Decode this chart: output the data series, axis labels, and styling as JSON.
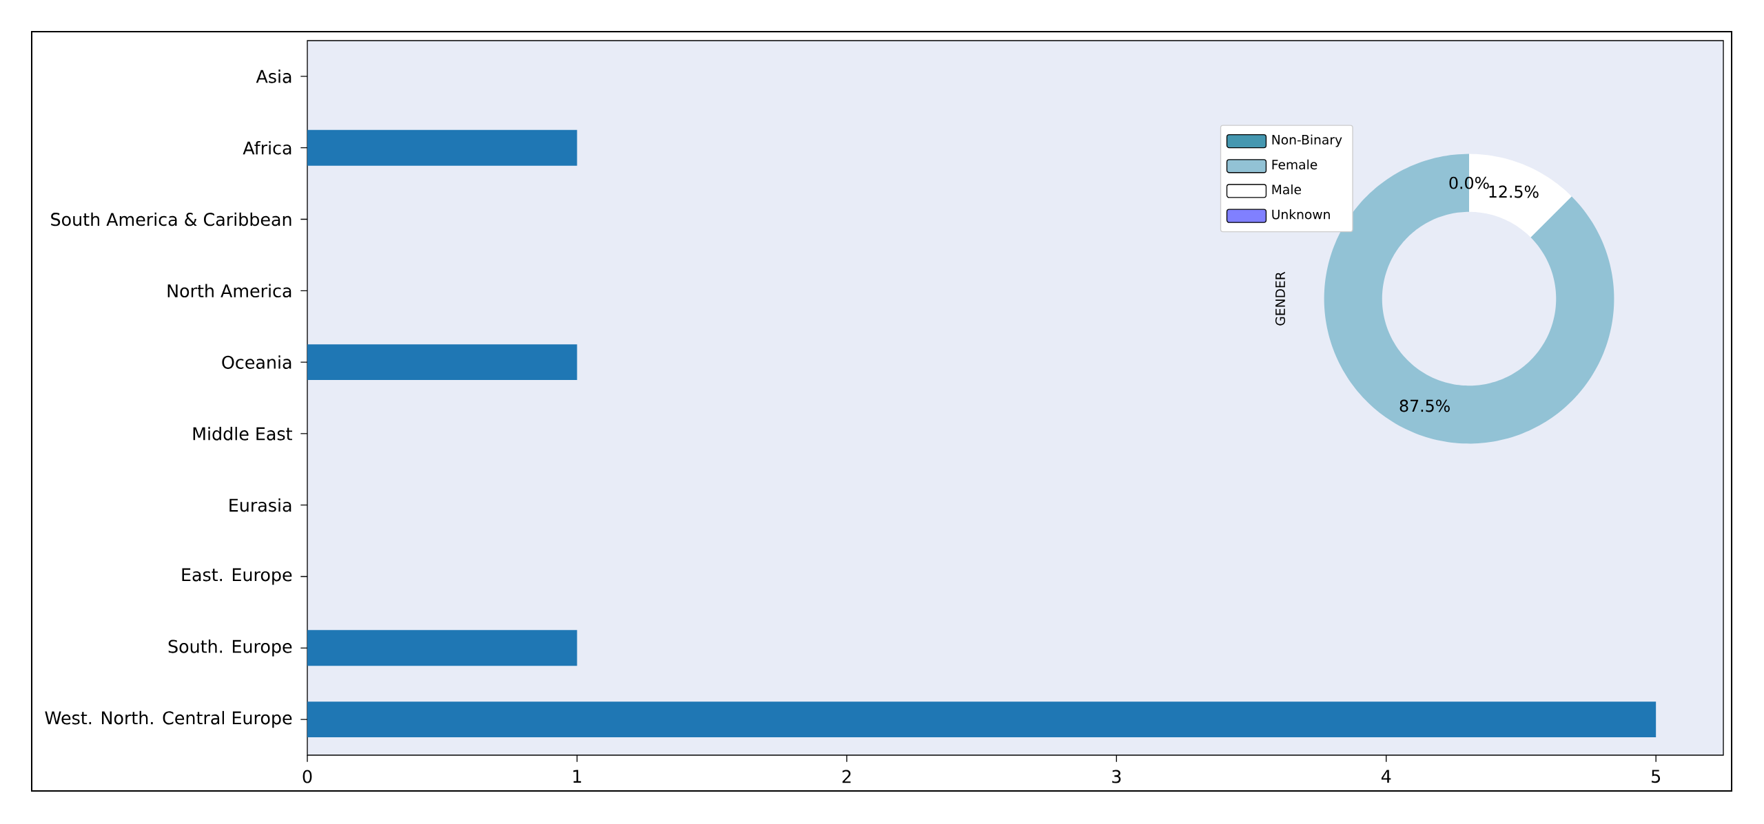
{
  "chart_data": [
    {
      "type": "bar",
      "orientation": "horizontal",
      "categories": [
        "Asia",
        "Africa",
        "South America & Caribbean",
        "North America",
        "Oceania",
        "Middle East",
        "Eurasia",
        "East. Europe",
        "South. Europe",
        "West. North. Central Europe"
      ],
      "values": [
        0,
        1,
        0,
        0,
        1,
        0,
        0,
        0,
        1,
        5
      ],
      "color": "#1f77b4",
      "xlim": [
        0,
        5.25
      ],
      "xticks": [
        0,
        1,
        2,
        3,
        4,
        5
      ]
    },
    {
      "type": "donut",
      "ylabel": "GENDER",
      "categories": [
        "Non-Binary",
        "Female",
        "Male",
        "Unknown"
      ],
      "values": [
        0,
        87.5,
        12.5,
        0
      ],
      "colors": [
        "#4597b0",
        "#92c2d5",
        "#ffffff",
        "#8080ff"
      ],
      "value_labels": [
        "0.0%",
        "87.5%",
        "12.5%",
        null
      ],
      "legend": "top left"
    }
  ]
}
